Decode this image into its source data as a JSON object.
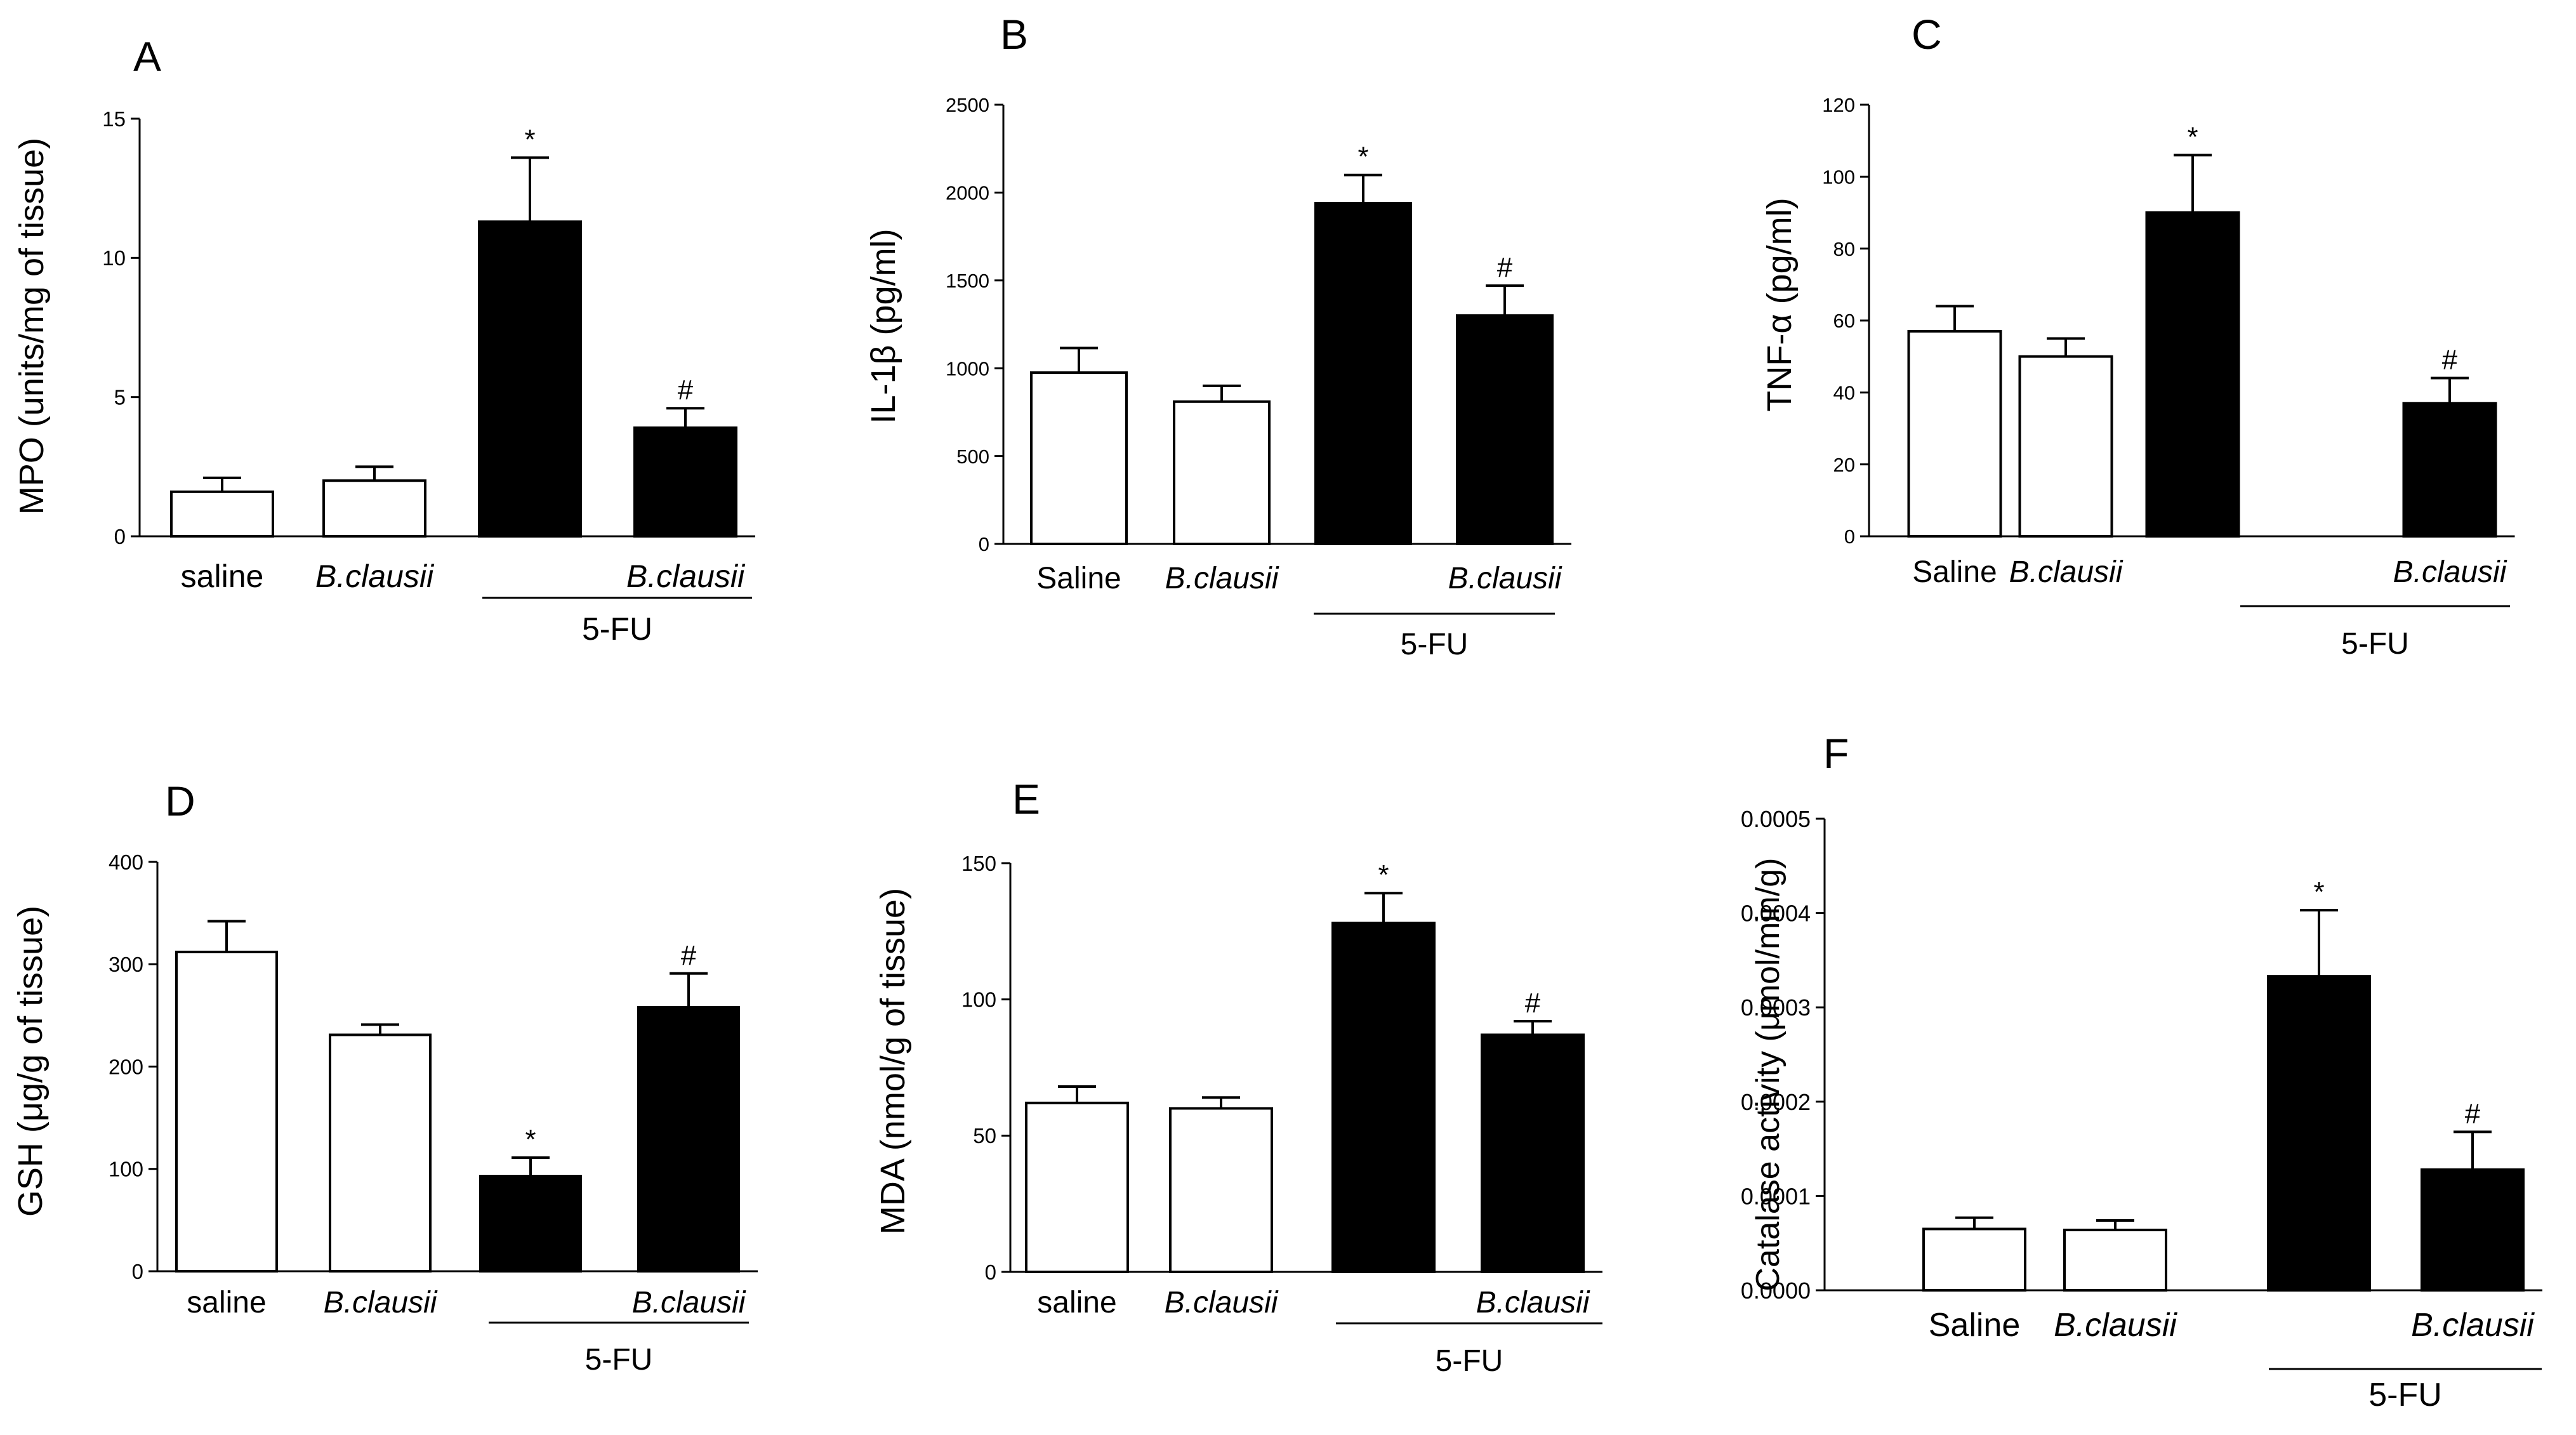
{
  "colors": {
    "saline_fill": "#ffffff",
    "treated_fill": "#000000",
    "ink": "#000000"
  },
  "chart_data": [
    {
      "panel": "A",
      "type": "bar",
      "ylabel": "MPO (units/mg of tissue)",
      "ylim": [
        0,
        15
      ],
      "yticks": [
        "0",
        "5",
        "10",
        "15"
      ],
      "categories": [
        "saline",
        "B.clausii",
        "",
        "B.clausii"
      ],
      "group_label": "5-FU",
      "values": [
        1.6,
        2.0,
        11.3,
        3.9
      ],
      "errors": [
        0.5,
        0.5,
        2.3,
        0.7
      ],
      "fills": [
        "white",
        "white",
        "black",
        "black"
      ],
      "marks": [
        "",
        "",
        "*",
        "#"
      ]
    },
    {
      "panel": "B",
      "type": "bar",
      "ylabel": "IL-1β (pg/ml)",
      "ylim": [
        0,
        2500
      ],
      "yticks": [
        "0",
        "500",
        "1000",
        "1500",
        "2000",
        "2500"
      ],
      "categories": [
        "Saline",
        "B.clausii",
        "",
        "B.clausii"
      ],
      "group_label": "5-FU",
      "values": [
        975,
        810,
        1940,
        1300
      ],
      "errors": [
        140,
        90,
        160,
        170
      ],
      "fills": [
        "white",
        "white",
        "black",
        "black"
      ],
      "marks": [
        "",
        "",
        "*",
        "#"
      ]
    },
    {
      "panel": "C",
      "type": "bar",
      "ylabel": "TNF-α (pg/ml)",
      "ylim": [
        0,
        120
      ],
      "yticks": [
        "0",
        "20",
        "40",
        "60",
        "80",
        "100",
        "120"
      ],
      "categories": [
        "Saline",
        "B.clausii",
        "",
        "B.clausii"
      ],
      "group_label": "5-FU",
      "values": [
        57,
        50,
        90,
        37
      ],
      "errors": [
        7,
        5,
        16,
        7
      ],
      "fills": [
        "white",
        "white",
        "black",
        "black"
      ],
      "marks": [
        "",
        "",
        "*",
        "#"
      ]
    },
    {
      "panel": "D",
      "type": "bar",
      "ylabel": "GSH (μg/g of tissue)",
      "ylim": [
        0,
        400
      ],
      "yticks": [
        "0",
        "100",
        "200",
        "300",
        "400"
      ],
      "categories": [
        "saline",
        "B.clausii",
        "",
        "B.clausii"
      ],
      "group_label": "5-FU",
      "values": [
        312,
        231,
        93,
        258
      ],
      "errors": [
        30,
        10,
        18,
        33
      ],
      "fills": [
        "white",
        "white",
        "black",
        "black"
      ],
      "marks": [
        "",
        "",
        "*",
        "#"
      ]
    },
    {
      "panel": "E",
      "type": "bar",
      "ylabel": "MDA (nmol/g of tissue)",
      "ylim": [
        0,
        150
      ],
      "yticks": [
        "0",
        "50",
        "100",
        "150"
      ],
      "categories": [
        "saline",
        "B.clausii",
        "",
        "B.clausii"
      ],
      "group_label": "5-FU",
      "values": [
        62,
        60,
        128,
        87
      ],
      "errors": [
        6,
        4,
        11,
        5
      ],
      "fills": [
        "white",
        "white",
        "black",
        "black"
      ],
      "marks": [
        "",
        "",
        "*",
        "#"
      ]
    },
    {
      "panel": "F",
      "type": "bar",
      "ylabel": "Catalase activity (μmol/min/g)",
      "ylim": [
        0,
        0.0005
      ],
      "yticks": [
        "0.0000",
        "0.0001",
        "0.0002",
        "0.0003",
        "0.0004",
        "0.0005"
      ],
      "categories": [
        "Saline",
        "B.clausii",
        "",
        "B.clausii"
      ],
      "group_label": "5-FU",
      "values": [
        6.5e-05,
        6.4e-05,
        0.000333,
        0.000128
      ],
      "errors": [
        1.2e-05,
        1e-05,
        7e-05,
        4e-05
      ],
      "fills": [
        "white",
        "white",
        "black",
        "black"
      ],
      "marks": [
        "",
        "",
        "*",
        "#"
      ]
    }
  ]
}
